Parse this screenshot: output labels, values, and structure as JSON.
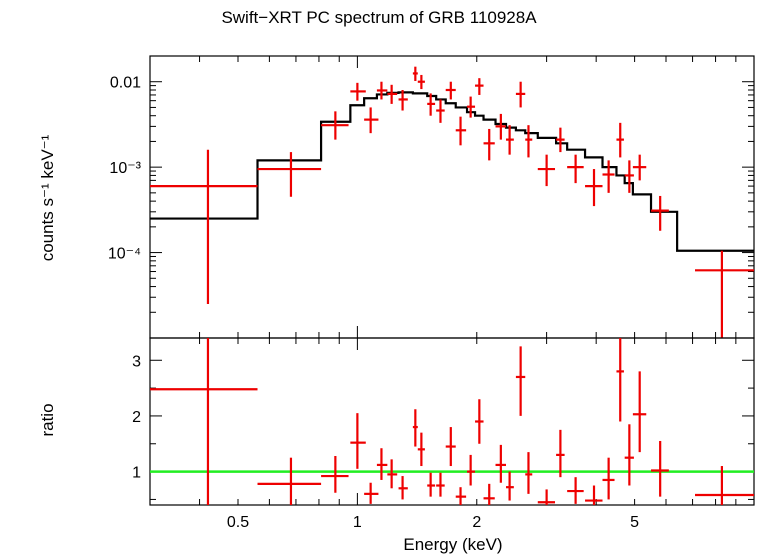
{
  "chart_data": [
    {
      "type": "scatter",
      "title": "Swift−XRT PC spectrum of GRB 110928A",
      "xlabel": "",
      "ylabel": "counts s⁻¹ keV⁻¹",
      "xscale": "log",
      "yscale": "log",
      "xlim": [
        0.3,
        10
      ],
      "ylim": [
        1e-05,
        0.02
      ],
      "ytick_labels": [
        "0.01",
        "10⁻³",
        "10⁻⁴"
      ],
      "ytick_values": [
        0.01,
        0.001,
        0.0001
      ],
      "series": [
        {
          "kind": "data",
          "color": "#ee0000",
          "points": [
            {
              "x": 0.42,
              "xlo": 0.3,
              "xhi": 0.56,
              "y": 0.0006,
              "ylo": 2.5e-05,
              "yhi": 0.0016
            },
            {
              "x": 0.68,
              "xlo": 0.56,
              "xhi": 0.81,
              "y": 0.00095,
              "ylo": 0.00045,
              "yhi": 0.0015
            },
            {
              "x": 0.88,
              "xlo": 0.81,
              "xhi": 0.95,
              "y": 0.0031,
              "ylo": 0.0021,
              "yhi": 0.0045
            },
            {
              "x": 1.0,
              "xlo": 0.96,
              "xhi": 1.05,
              "y": 0.0077,
              "ylo": 0.006,
              "yhi": 0.0097
            },
            {
              "x": 1.08,
              "xlo": 1.04,
              "xhi": 1.13,
              "y": 0.0036,
              "ylo": 0.0025,
              "yhi": 0.005
            },
            {
              "x": 1.15,
              "xlo": 1.12,
              "xhi": 1.19,
              "y": 0.0079,
              "ylo": 0.0062,
              "yhi": 0.01
            },
            {
              "x": 1.22,
              "xlo": 1.19,
              "xhi": 1.26,
              "y": 0.0072,
              "ylo": 0.0055,
              "yhi": 0.0092
            },
            {
              "x": 1.3,
              "xlo": 1.27,
              "xhi": 1.34,
              "y": 0.0062,
              "ylo": 0.0046,
              "yhi": 0.008
            },
            {
              "x": 1.4,
              "xlo": 1.38,
              "xhi": 1.42,
              "y": 0.0125,
              "ylo": 0.0102,
              "yhi": 0.015
            },
            {
              "x": 1.45,
              "xlo": 1.42,
              "xhi": 1.48,
              "y": 0.01,
              "ylo": 0.0082,
              "yhi": 0.012
            },
            {
              "x": 1.53,
              "xlo": 1.5,
              "xhi": 1.57,
              "y": 0.0055,
              "ylo": 0.004,
              "yhi": 0.0073
            },
            {
              "x": 1.62,
              "xlo": 1.58,
              "xhi": 1.66,
              "y": 0.0046,
              "ylo": 0.0033,
              "yhi": 0.0062
            },
            {
              "x": 1.72,
              "xlo": 1.67,
              "xhi": 1.77,
              "y": 0.008,
              "ylo": 0.0062,
              "yhi": 0.01
            },
            {
              "x": 1.82,
              "xlo": 1.77,
              "xhi": 1.88,
              "y": 0.0027,
              "ylo": 0.0018,
              "yhi": 0.0039
            },
            {
              "x": 1.93,
              "xlo": 1.89,
              "xhi": 1.98,
              "y": 0.0051,
              "ylo": 0.0038,
              "yhi": 0.0067
            },
            {
              "x": 2.03,
              "xlo": 1.98,
              "xhi": 2.08,
              "y": 0.009,
              "ylo": 0.007,
              "yhi": 0.011
            },
            {
              "x": 2.15,
              "xlo": 2.08,
              "xhi": 2.22,
              "y": 0.0019,
              "ylo": 0.0012,
              "yhi": 0.0028
            },
            {
              "x": 2.3,
              "xlo": 2.23,
              "xhi": 2.37,
              "y": 0.003,
              "ylo": 0.0021,
              "yhi": 0.0042
            },
            {
              "x": 2.42,
              "xlo": 2.37,
              "xhi": 2.48,
              "y": 0.0021,
              "ylo": 0.0014,
              "yhi": 0.0031
            },
            {
              "x": 2.58,
              "xlo": 2.51,
              "xhi": 2.65,
              "y": 0.0072,
              "ylo": 0.005,
              "yhi": 0.01
            },
            {
              "x": 2.7,
              "xlo": 2.65,
              "xhi": 2.76,
              "y": 0.0021,
              "ylo": 0.0013,
              "yhi": 0.0031
            },
            {
              "x": 3.0,
              "xlo": 2.85,
              "xhi": 3.15,
              "y": 0.00095,
              "ylo": 0.0006,
              "yhi": 0.0014
            },
            {
              "x": 3.25,
              "xlo": 3.17,
              "xhi": 3.33,
              "y": 0.0021,
              "ylo": 0.0015,
              "yhi": 0.0029
            },
            {
              "x": 3.55,
              "xlo": 3.38,
              "xhi": 3.72,
              "y": 0.001,
              "ylo": 0.00065,
              "yhi": 0.0014
            },
            {
              "x": 3.95,
              "xlo": 3.75,
              "xhi": 4.15,
              "y": 0.0006,
              "ylo": 0.00035,
              "yhi": 0.00095
            },
            {
              "x": 4.3,
              "xlo": 4.15,
              "xhi": 4.45,
              "y": 0.00082,
              "ylo": 0.0005,
              "yhi": 0.0012
            },
            {
              "x": 4.6,
              "xlo": 4.5,
              "xhi": 4.7,
              "y": 0.0021,
              "ylo": 0.0013,
              "yhi": 0.0033
            },
            {
              "x": 4.85,
              "xlo": 4.72,
              "xhi": 4.98,
              "y": 0.0008,
              "ylo": 0.0005,
              "yhi": 0.0012
            },
            {
              "x": 5.15,
              "xlo": 4.95,
              "xhi": 5.35,
              "y": 0.001,
              "ylo": 0.0007,
              "yhi": 0.0014
            },
            {
              "x": 5.8,
              "xlo": 5.5,
              "xhi": 6.1,
              "y": 0.00031,
              "ylo": 0.00018,
              "yhi": 0.00046
            },
            {
              "x": 8.3,
              "xlo": 7.1,
              "xhi": 10.0,
              "y": 6.2e-05,
              "ylo": 1e-05,
              "yhi": 0.000105
            }
          ]
        },
        {
          "kind": "model",
          "color": "#000000",
          "steps": [
            {
              "xlo": 0.3,
              "xhi": 0.56,
              "y": 0.00025
            },
            {
              "xlo": 0.56,
              "xhi": 0.81,
              "y": 0.0012
            },
            {
              "xlo": 0.81,
              "xhi": 0.96,
              "y": 0.0034
            },
            {
              "xlo": 0.96,
              "xhi": 1.04,
              "y": 0.0053
            },
            {
              "xlo": 1.04,
              "xhi": 1.12,
              "y": 0.0064
            },
            {
              "xlo": 1.12,
              "xhi": 1.19,
              "y": 0.0071
            },
            {
              "xlo": 1.19,
              "xhi": 1.27,
              "y": 0.0074
            },
            {
              "xlo": 1.27,
              "xhi": 1.38,
              "y": 0.0075
            },
            {
              "xlo": 1.38,
              "xhi": 1.5,
              "y": 0.0073
            },
            {
              "xlo": 1.5,
              "xhi": 1.58,
              "y": 0.0068
            },
            {
              "xlo": 1.58,
              "xhi": 1.67,
              "y": 0.0062
            },
            {
              "xlo": 1.67,
              "xhi": 1.77,
              "y": 0.0056
            },
            {
              "xlo": 1.77,
              "xhi": 1.89,
              "y": 0.005
            },
            {
              "xlo": 1.89,
              "xhi": 1.98,
              "y": 0.0044
            },
            {
              "xlo": 1.98,
              "xhi": 2.08,
              "y": 0.004
            },
            {
              "xlo": 2.08,
              "xhi": 2.23,
              "y": 0.0036
            },
            {
              "xlo": 2.23,
              "xhi": 2.37,
              "y": 0.0032
            },
            {
              "xlo": 2.37,
              "xhi": 2.51,
              "y": 0.0029
            },
            {
              "xlo": 2.51,
              "xhi": 2.65,
              "y": 0.0027
            },
            {
              "xlo": 2.65,
              "xhi": 2.85,
              "y": 0.0025
            },
            {
              "xlo": 2.85,
              "xhi": 3.17,
              "y": 0.0022
            },
            {
              "xlo": 3.17,
              "xhi": 3.38,
              "y": 0.0019
            },
            {
              "xlo": 3.38,
              "xhi": 3.75,
              "y": 0.0016
            },
            {
              "xlo": 3.75,
              "xhi": 4.15,
              "y": 0.0013
            },
            {
              "xlo": 4.15,
              "xhi": 4.5,
              "y": 0.001
            },
            {
              "xlo": 4.5,
              "xhi": 4.72,
              "y": 0.0008
            },
            {
              "xlo": 4.72,
              "xhi": 4.95,
              "y": 0.00065
            },
            {
              "xlo": 4.95,
              "xhi": 5.5,
              "y": 0.00048
            },
            {
              "xlo": 5.5,
              "xhi": 6.4,
              "y": 0.0003
            },
            {
              "xlo": 6.4,
              "xhi": 10.0,
              "y": 0.000105
            }
          ]
        }
      ]
    },
    {
      "type": "scatter",
      "title": "",
      "xlabel": "Energy (keV)",
      "ylabel": "ratio",
      "xscale": "log",
      "yscale": "linear",
      "xlim": [
        0.3,
        10
      ],
      "ylim": [
        0.4,
        3.4
      ],
      "xtick_labels": [
        "0.5",
        "1",
        "2",
        "5"
      ],
      "xtick_values": [
        0.5,
        1,
        2,
        5
      ],
      "ytick_labels": [
        "1",
        "2",
        "3"
      ],
      "ytick_values": [
        1,
        2,
        3
      ],
      "reference_line": {
        "y": 1,
        "color": "#22ee22"
      },
      "series": [
        {
          "kind": "ratio",
          "color": "#ee0000",
          "points": [
            {
              "x": 0.42,
              "xlo": 0.3,
              "xhi": 0.56,
              "y": 2.48,
              "ylo": 0.4,
              "yhi": 3.4
            },
            {
              "x": 0.68,
              "xlo": 0.56,
              "xhi": 0.81,
              "y": 0.78,
              "ylo": 0.4,
              "yhi": 1.25
            },
            {
              "x": 0.88,
              "xlo": 0.81,
              "xhi": 0.95,
              "y": 0.92,
              "ylo": 0.62,
              "yhi": 1.28
            },
            {
              "x": 1.0,
              "xlo": 0.96,
              "xhi": 1.05,
              "y": 1.52,
              "ylo": 1.05,
              "yhi": 2.05
            },
            {
              "x": 1.08,
              "xlo": 1.04,
              "xhi": 1.13,
              "y": 0.6,
              "ylo": 0.42,
              "yhi": 0.8
            },
            {
              "x": 1.15,
              "xlo": 1.12,
              "xhi": 1.19,
              "y": 1.12,
              "ylo": 0.85,
              "yhi": 1.42
            },
            {
              "x": 1.22,
              "xlo": 1.19,
              "xhi": 1.26,
              "y": 0.95,
              "ylo": 0.7,
              "yhi": 1.22
            },
            {
              "x": 1.3,
              "xlo": 1.27,
              "xhi": 1.34,
              "y": 0.7,
              "ylo": 0.5,
              "yhi": 0.92
            },
            {
              "x": 1.4,
              "xlo": 1.38,
              "xhi": 1.42,
              "y": 1.8,
              "ylo": 1.45,
              "yhi": 2.12
            },
            {
              "x": 1.45,
              "xlo": 1.42,
              "xhi": 1.48,
              "y": 1.4,
              "ylo": 1.1,
              "yhi": 1.7
            },
            {
              "x": 1.53,
              "xlo": 1.5,
              "xhi": 1.57,
              "y": 0.75,
              "ylo": 0.55,
              "yhi": 0.98
            },
            {
              "x": 1.62,
              "xlo": 1.58,
              "xhi": 1.66,
              "y": 0.75,
              "ylo": 0.55,
              "yhi": 0.98
            },
            {
              "x": 1.72,
              "xlo": 1.67,
              "xhi": 1.77,
              "y": 1.45,
              "ylo": 1.1,
              "yhi": 1.8
            },
            {
              "x": 1.82,
              "xlo": 1.77,
              "xhi": 1.88,
              "y": 0.55,
              "ylo": 0.4,
              "yhi": 0.72
            },
            {
              "x": 1.93,
              "xlo": 1.89,
              "xhi": 1.98,
              "y": 1.0,
              "ylo": 0.75,
              "yhi": 1.3
            },
            {
              "x": 2.03,
              "xlo": 1.98,
              "xhi": 2.08,
              "y": 1.9,
              "ylo": 1.5,
              "yhi": 2.3
            },
            {
              "x": 2.15,
              "xlo": 2.08,
              "xhi": 2.22,
              "y": 0.52,
              "ylo": 0.4,
              "yhi": 0.78
            },
            {
              "x": 2.3,
              "xlo": 2.23,
              "xhi": 2.37,
              "y": 1.12,
              "ylo": 0.8,
              "yhi": 1.48
            },
            {
              "x": 2.42,
              "xlo": 2.37,
              "xhi": 2.48,
              "y": 0.72,
              "ylo": 0.48,
              "yhi": 1.0
            },
            {
              "x": 2.58,
              "xlo": 2.51,
              "xhi": 2.65,
              "y": 2.7,
              "ylo": 2.0,
              "yhi": 3.25
            },
            {
              "x": 2.7,
              "xlo": 2.65,
              "xhi": 2.76,
              "y": 0.95,
              "ylo": 0.6,
              "yhi": 1.35
            },
            {
              "x": 3.0,
              "xlo": 2.85,
              "xhi": 3.15,
              "y": 0.45,
              "ylo": 0.4,
              "yhi": 0.68
            },
            {
              "x": 3.25,
              "xlo": 3.17,
              "xhi": 3.33,
              "y": 1.3,
              "ylo": 0.9,
              "yhi": 1.75
            },
            {
              "x": 3.55,
              "xlo": 3.38,
              "xhi": 3.72,
              "y": 0.65,
              "ylo": 0.42,
              "yhi": 0.9
            },
            {
              "x": 3.95,
              "xlo": 3.75,
              "xhi": 4.15,
              "y": 0.48,
              "ylo": 0.4,
              "yhi": 0.75
            },
            {
              "x": 4.3,
              "xlo": 4.15,
              "xhi": 4.45,
              "y": 0.85,
              "ylo": 0.5,
              "yhi": 1.25
            },
            {
              "x": 4.6,
              "xlo": 4.5,
              "xhi": 4.7,
              "y": 2.8,
              "ylo": 1.9,
              "yhi": 3.4
            },
            {
              "x": 4.85,
              "xlo": 4.72,
              "xhi": 4.98,
              "y": 1.25,
              "ylo": 0.75,
              "yhi": 1.85
            },
            {
              "x": 5.15,
              "xlo": 4.95,
              "xhi": 5.35,
              "y": 2.03,
              "ylo": 1.35,
              "yhi": 2.8
            },
            {
              "x": 5.8,
              "xlo": 5.5,
              "xhi": 6.1,
              "y": 1.02,
              "ylo": 0.55,
              "yhi": 1.55
            },
            {
              "x": 8.3,
              "xlo": 7.1,
              "xhi": 10.0,
              "y": 0.58,
              "ylo": 0.4,
              "yhi": 1.1
            }
          ]
        }
      ]
    }
  ]
}
